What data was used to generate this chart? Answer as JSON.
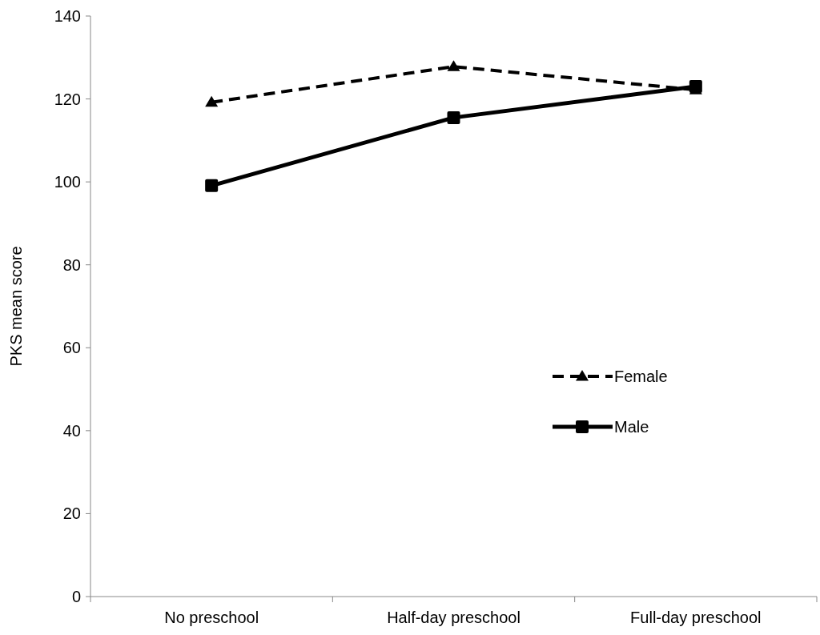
{
  "chart_data": {
    "type": "line",
    "ylabel": "PKS mean score",
    "categories": [
      "No preschool",
      "Half-day preschool",
      "Full-day preschool"
    ],
    "series": [
      {
        "name": "Female",
        "color": "#000000",
        "values": [
          119.2,
          127.8,
          122.2
        ],
        "marker": "triangle",
        "line_style": "dashed"
      },
      {
        "name": "Male",
        "color": "#000000",
        "values": [
          99.1,
          115.5,
          123
        ],
        "marker": "square",
        "line_style": "solid"
      }
    ],
    "ylim": [
      0,
      140
    ],
    "yticks": [
      0,
      20,
      40,
      60,
      80,
      100,
      120,
      140
    ],
    "grid": false,
    "legend": "right"
  }
}
